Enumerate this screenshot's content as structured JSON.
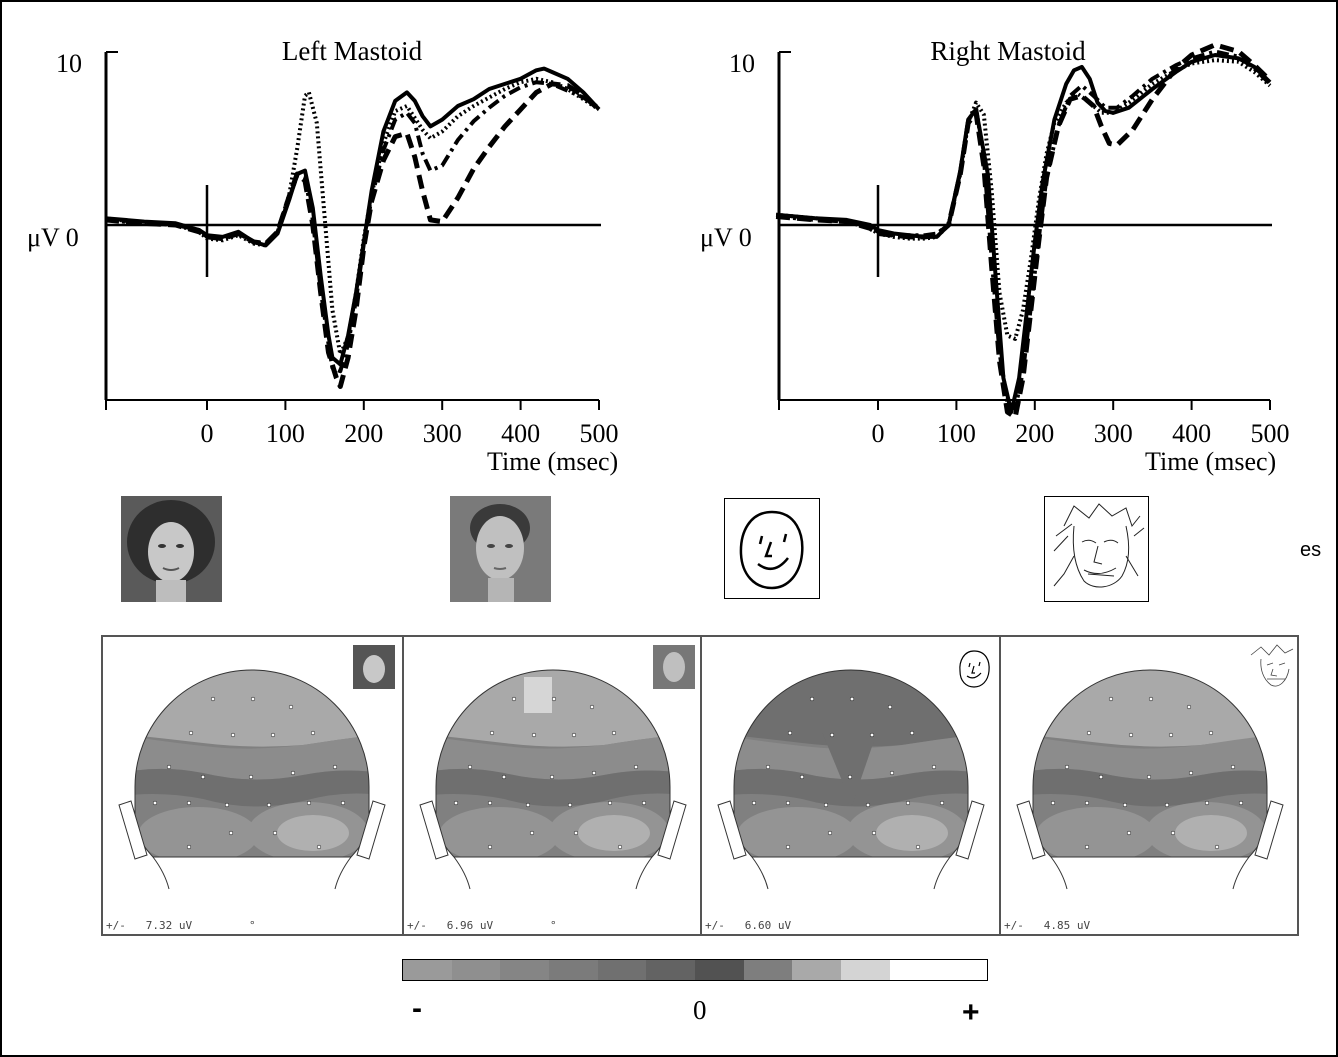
{
  "chart_data": [
    {
      "type": "line",
      "title": "Left Mastoid",
      "ylabel": "μV 0",
      "ytop_label": "10",
      "xlabel": "Time (msec)",
      "x_ticks": [
        0,
        100,
        200,
        300,
        400,
        500
      ],
      "xlim": [
        -130,
        500
      ],
      "ylim": [
        -10,
        10
      ],
      "series": [
        {
          "style": "solid",
          "x": [
            -130,
            -80,
            -40,
            -10,
            0,
            20,
            40,
            60,
            75,
            90,
            105,
            115,
            125,
            135,
            145,
            155,
            160,
            170,
            180,
            190,
            200,
            210,
            225,
            240,
            255,
            265,
            275,
            285,
            300,
            320,
            340,
            360,
            380,
            400,
            420,
            430,
            440,
            460,
            480,
            500
          ],
          "y": [
            0.4,
            0.2,
            0.1,
            -0.3,
            -0.6,
            -0.7,
            -0.4,
            -1.0,
            -1.2,
            -0.5,
            1.5,
            3.0,
            3.2,
            1.0,
            -3.0,
            -6.5,
            -7.8,
            -8.2,
            -6.5,
            -4.0,
            -1.0,
            2.0,
            5.5,
            7.3,
            7.8,
            7.3,
            6.4,
            5.8,
            6.2,
            7.0,
            7.4,
            8.0,
            8.3,
            8.6,
            9.1,
            9.2,
            9.0,
            8.6,
            7.8,
            6.8
          ]
        },
        {
          "style": "dotted",
          "x": [
            -130,
            -80,
            -40,
            -10,
            0,
            20,
            40,
            60,
            75,
            90,
            105,
            115,
            125,
            130,
            140,
            150,
            160,
            170,
            180,
            190,
            200,
            210,
            225,
            240,
            255,
            265,
            275,
            285,
            300,
            320,
            340,
            360,
            380,
            400,
            420,
            440,
            460,
            480,
            500
          ],
          "y": [
            0.4,
            0.1,
            0.0,
            -0.4,
            -0.8,
            -0.9,
            -0.6,
            -1.1,
            -1.2,
            -0.4,
            1.8,
            4.5,
            7.6,
            7.8,
            6.0,
            0.5,
            -5.0,
            -7.6,
            -6.6,
            -4.0,
            -0.8,
            1.8,
            4.8,
            6.7,
            7.0,
            6.3,
            5.6,
            5.1,
            5.5,
            6.4,
            7.0,
            7.5,
            8.0,
            8.4,
            8.6,
            8.4,
            8.0,
            7.4,
            6.8
          ]
        },
        {
          "style": "dashed",
          "x": [
            -130,
            -80,
            -40,
            -10,
            0,
            20,
            40,
            60,
            75,
            90,
            105,
            115,
            125,
            135,
            145,
            155,
            165,
            170,
            180,
            190,
            200,
            210,
            225,
            240,
            255,
            265,
            275,
            285,
            300,
            320,
            340,
            360,
            380,
            400,
            420,
            440,
            460,
            480,
            500
          ],
          "y": [
            0.3,
            0.1,
            0.0,
            -0.4,
            -0.7,
            -0.8,
            -0.5,
            -1.0,
            -1.1,
            -0.4,
            1.7,
            3.0,
            2.6,
            0.0,
            -4.0,
            -7.5,
            -9.0,
            -9.5,
            -7.8,
            -5.0,
            -1.3,
            1.4,
            3.8,
            5.2,
            5.4,
            4.0,
            2.0,
            0.3,
            0.2,
            1.6,
            3.3,
            4.6,
            5.8,
            6.8,
            7.8,
            8.3,
            8.2,
            7.6,
            6.8
          ]
        },
        {
          "style": "dash-dot",
          "x": [
            -130,
            -80,
            -40,
            -10,
            0,
            20,
            40,
            60,
            75,
            90,
            105,
            115,
            125,
            135,
            145,
            155,
            160,
            170,
            180,
            190,
            200,
            210,
            225,
            240,
            255,
            265,
            275,
            285,
            300,
            320,
            340,
            360,
            380,
            400,
            420,
            440,
            460,
            480,
            500
          ],
          "y": [
            0.3,
            0.1,
            0.0,
            -0.3,
            -0.7,
            -0.8,
            -0.5,
            -1.0,
            -1.1,
            -0.4,
            1.6,
            2.9,
            2.8,
            0.3,
            -3.8,
            -7.0,
            -8.4,
            -8.6,
            -7.0,
            -4.4,
            -1.1,
            1.6,
            4.4,
            6.2,
            6.6,
            6.0,
            4.2,
            3.2,
            3.5,
            5.0,
            6.1,
            6.9,
            7.6,
            8.1,
            8.4,
            8.3,
            7.9,
            7.5,
            6.9
          ]
        }
      ]
    },
    {
      "type": "line",
      "title": "Right Mastoid",
      "ylabel": "μV 0",
      "ytop_label": "10",
      "xlabel": "Time (msec)",
      "x_ticks": [
        0,
        100,
        200,
        300,
        400,
        500
      ],
      "xlim": [
        -130,
        500
      ],
      "ylim": [
        -10,
        10
      ],
      "series": [
        {
          "style": "solid",
          "x": [
            -130,
            -80,
            -40,
            -10,
            0,
            20,
            40,
            60,
            75,
            90,
            105,
            115,
            125,
            140,
            150,
            160,
            170,
            180,
            190,
            200,
            210,
            225,
            240,
            250,
            260,
            270,
            280,
            290,
            300,
            320,
            350,
            380,
            400,
            430,
            460,
            480,
            500
          ],
          "y": [
            0.6,
            0.4,
            0.3,
            0.0,
            -0.3,
            -0.5,
            -0.6,
            -0.7,
            -0.7,
            0.0,
            3.2,
            6.2,
            6.8,
            3.0,
            -3.0,
            -9.0,
            -11.0,
            -9.0,
            -5.0,
            -1.0,
            2.5,
            6.2,
            8.3,
            9.1,
            9.3,
            8.6,
            7.2,
            6.7,
            6.6,
            6.9,
            8.0,
            9.0,
            9.6,
            10.0,
            9.8,
            9.3,
            8.4
          ]
        },
        {
          "style": "dotted",
          "x": [
            -130,
            -80,
            -40,
            -10,
            0,
            20,
            40,
            60,
            75,
            90,
            105,
            115,
            125,
            135,
            145,
            155,
            165,
            175,
            185,
            195,
            205,
            215,
            225,
            240,
            255,
            270,
            285,
            300,
            320,
            350,
            380,
            400,
            430,
            460,
            480,
            500
          ],
          "y": [
            0.6,
            0.4,
            0.2,
            -0.2,
            -0.5,
            -0.7,
            -0.8,
            -0.8,
            -0.7,
            0.0,
            3.0,
            6.0,
            7.2,
            6.5,
            2.0,
            -4.0,
            -6.5,
            -6.7,
            -5.0,
            -2.0,
            1.4,
            4.2,
            6.0,
            7.2,
            7.7,
            7.2,
            6.6,
            6.6,
            7.2,
            8.3,
            9.1,
            9.5,
            9.7,
            9.6,
            9.0,
            8.2
          ]
        },
        {
          "style": "dashed",
          "x": [
            -130,
            -80,
            -40,
            -10,
            0,
            20,
            40,
            60,
            75,
            90,
            105,
            115,
            125,
            135,
            145,
            155,
            165,
            175,
            185,
            195,
            205,
            215,
            230,
            245,
            260,
            275,
            285,
            295,
            305,
            325,
            350,
            380,
            400,
            430,
            460,
            480,
            500
          ],
          "y": [
            0.5,
            0.3,
            0.2,
            -0.2,
            -0.5,
            -0.6,
            -0.7,
            -0.7,
            -0.6,
            0.0,
            3.0,
            6.0,
            6.6,
            3.5,
            -2.5,
            -8.0,
            -11.0,
            -11.3,
            -9.0,
            -5.0,
            -1.0,
            2.8,
            5.8,
            7.4,
            7.6,
            7.0,
            5.8,
            4.8,
            4.7,
            5.6,
            7.4,
            9.2,
            10.0,
            10.6,
            10.2,
            9.4,
            8.5
          ]
        },
        {
          "style": "dash-dot",
          "x": [
            -130,
            -80,
            -40,
            -10,
            0,
            20,
            40,
            60,
            75,
            90,
            105,
            115,
            125,
            135,
            145,
            155,
            165,
            175,
            185,
            195,
            205,
            215,
            230,
            245,
            260,
            275,
            290,
            305,
            325,
            350,
            380,
            400,
            430,
            460,
            480,
            500
          ],
          "y": [
            0.5,
            0.3,
            0.2,
            -0.1,
            -0.4,
            -0.6,
            -0.6,
            -0.6,
            -0.5,
            0.0,
            3.1,
            6.1,
            6.9,
            4.0,
            -2.0,
            -7.5,
            -10.4,
            -10.8,
            -8.6,
            -4.8,
            -0.8,
            2.8,
            5.8,
            7.6,
            8.2,
            7.6,
            6.9,
            6.9,
            7.6,
            8.6,
            9.4,
            9.8,
            10.2,
            9.9,
            9.2,
            8.3
          ]
        }
      ]
    }
  ],
  "face_thumbnails": [
    {
      "name": "photograph-face"
    },
    {
      "name": "painting-face"
    },
    {
      "name": "schematic-face"
    },
    {
      "name": "sketch-face"
    }
  ],
  "stray_text": "es",
  "topo_panels": [
    {
      "label": "+/-   7.32 uV",
      "mark": "°"
    },
    {
      "label": "+/-   6.96 uV",
      "mark": "°"
    },
    {
      "label": "+/-   6.60 uV",
      "mark": ""
    },
    {
      "label": "+/-   4.85 uV",
      "mark": ""
    }
  ],
  "colorbar": {
    "colors": [
      "#9a9a9a",
      "#8f8f8f",
      "#858585",
      "#7b7b7b",
      "#707070",
      "#636363",
      "#525252",
      "#7e7e7e",
      "#a9a9a9",
      "#d4d4d4",
      "#ffffff",
      "#ffffff"
    ],
    "minus": "-",
    "zero": "0",
    "plus": "+"
  },
  "grays": {
    "g1": "#a9a9a9",
    "g2": "#8c8c8c",
    "g3": "#6f6f6f",
    "g4": "#808080",
    "g5": "#949494",
    "g6": "#b0b0b0"
  }
}
